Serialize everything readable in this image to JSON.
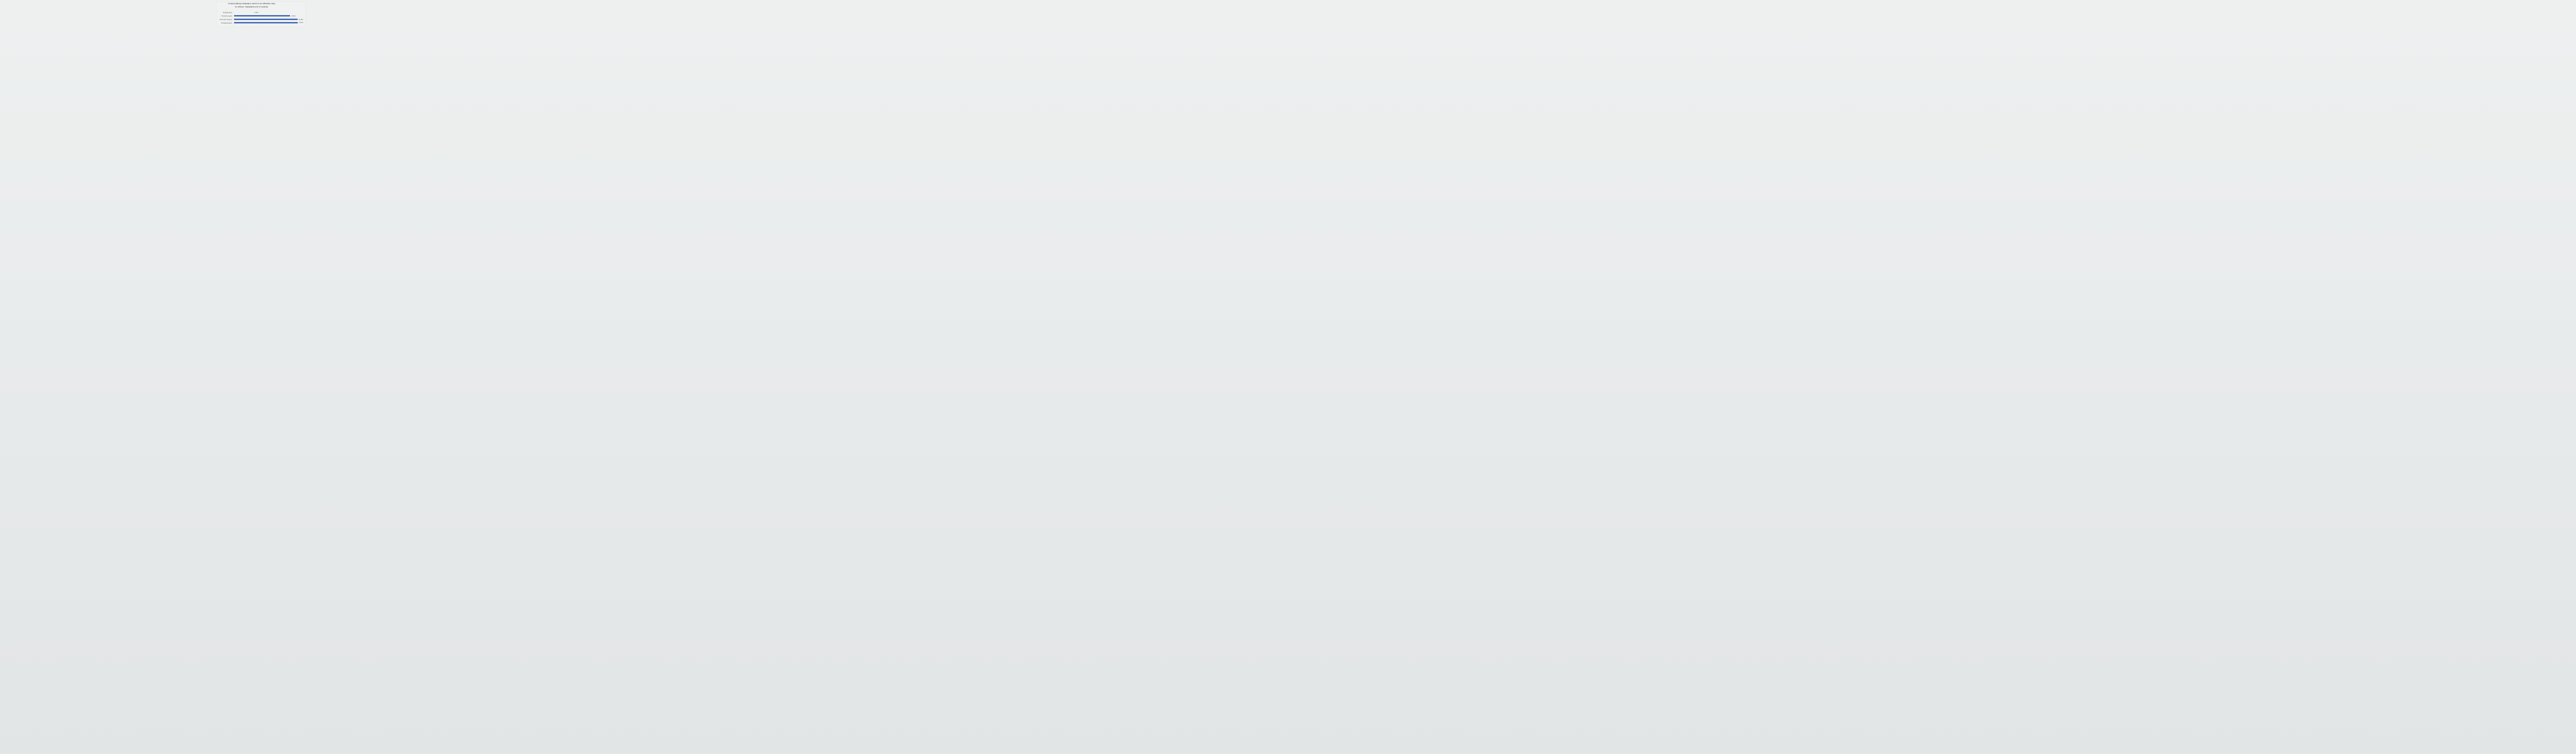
{
  "chart_data": {
    "type": "bar",
    "orientation": "horizontal",
    "title": "Incarcerating marijuana users is an effective way to reduce marijuana use in society.",
    "title_lines": [
      "Incarcerating marijuana users is an effective way",
      "to reduce marijuana use in society."
    ],
    "categories": [
      "Strongly agree",
      "Somewhat agree",
      "Somewhat disagree",
      "Strongly disagree"
    ],
    "values": [
      9.59,
      27.63,
      31.36,
      31.42
    ],
    "data_labels": [
      "9.59%",
      "27.63%",
      "31.36%",
      "31.42%"
    ],
    "unit": "%",
    "xlim": [
      0,
      31.42
    ],
    "grid": false,
    "legend": "none",
    "bar_color": "#0a3d9c"
  }
}
